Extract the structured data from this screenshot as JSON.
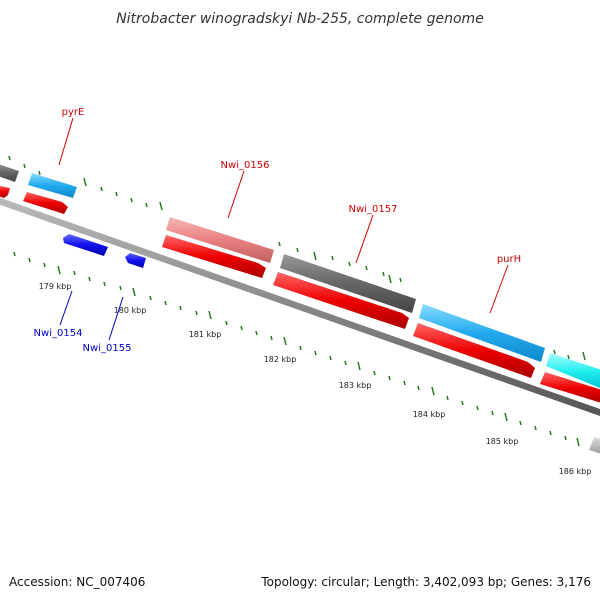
{
  "title": "Nitrobacter winogradskyi Nb-255, complete genome",
  "footer": {
    "accession": "Accession: NC_007406",
    "summary": "Topology: circular; Length: 3,402,093 bp; Genes: 3,176"
  },
  "colors": {
    "forward_label": "#cc0000",
    "reverse_label": "#0000cc",
    "tick": "#227722",
    "backbone": "#808080"
  },
  "ticks": {
    "labels": [
      "179 kbp",
      "180 kbp",
      "181 kbp",
      "182 kbp",
      "183 kbp",
      "184 kbp",
      "185 kbp",
      "186 kbp"
    ]
  },
  "genes": {
    "labels": {
      "pyrE": "pyrE",
      "nwi0156": "Nwi_0156",
      "nwi0157": "Nwi_0157",
      "purH": "purH",
      "nwi0154": "Nwi_0154",
      "nwi0155": "Nwi_0155"
    }
  }
}
